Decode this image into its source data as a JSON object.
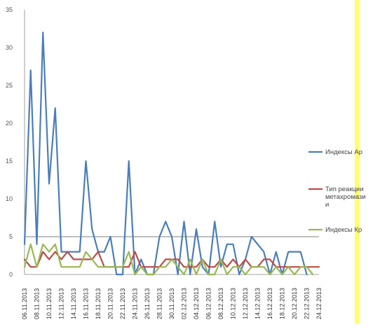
{
  "chart_data": {
    "type": "line",
    "ylim": [
      0,
      35
    ],
    "yticks": [
      0,
      5,
      10,
      15,
      20,
      25,
      30,
      35
    ],
    "x_tick_labels": [
      "06.11.2013",
      "08.11.2013",
      "10.11.2013",
      "12.11.2013",
      "14.11.2013",
      "16.11.2013",
      "18.11.2013",
      "20.11.2013",
      "22.11.2013",
      "24.11.2013",
      "26.11.2013",
      "28.11.2013",
      "30.11.2013",
      "02.12.2013",
      "04.12.2013",
      "06.12.2013",
      "08.12.2013",
      "10.12.2013",
      "12.12.2013",
      "14.12.2013",
      "16.12.2013",
      "18.12.2013",
      "20.12.2013",
      "22.12.2013",
      "24.12.2013"
    ],
    "x": [
      "06.11.2013",
      "07.11.2013",
      "08.11.2013",
      "09.11.2013",
      "10.11.2013",
      "11.11.2013",
      "12.11.2013",
      "13.11.2013",
      "14.11.2013",
      "15.11.2013",
      "16.11.2013",
      "17.11.2013",
      "18.11.2013",
      "19.11.2013",
      "20.11.2013",
      "21.11.2013",
      "22.11.2013",
      "23.11.2013",
      "24.11.2013",
      "25.11.2013",
      "26.11.2013",
      "27.11.2013",
      "28.11.2013",
      "29.11.2013",
      "30.11.2013",
      "01.12.2013",
      "02.12.2013",
      "03.12.2013",
      "04.12.2013",
      "05.12.2013",
      "06.12.2013",
      "07.12.2013",
      "08.12.2013",
      "09.12.2013",
      "10.12.2013",
      "11.12.2013",
      "12.12.2013",
      "13.12.2013",
      "14.12.2013",
      "15.12.2013",
      "16.12.2013",
      "17.12.2013",
      "18.12.2013",
      "19.12.2013",
      "20.12.2013",
      "21.12.2013",
      "22.12.2013",
      "23.12.2013",
      "24.12.2013"
    ],
    "series": [
      {
        "name": "Индексы Ар",
        "color": "#4A7EBB",
        "values": [
          4,
          27,
          4,
          32,
          12,
          22,
          3,
          3,
          3,
          3,
          15,
          6,
          3,
          3,
          5,
          0,
          0,
          15,
          0,
          2,
          0,
          0,
          5,
          7,
          5,
          0,
          7,
          0,
          6,
          1,
          0,
          7,
          1,
          4,
          4,
          0,
          2,
          5,
          4,
          3,
          0,
          3,
          0,
          3,
          3,
          3,
          0,
          null,
          null
        ]
      },
      {
        "name": "Тип реакции метахромазии",
        "color": "#BE4B48",
        "values": [
          2,
          1,
          1,
          3,
          2,
          3,
          2,
          3,
          2,
          2,
          2,
          2,
          3,
          1,
          1,
          1,
          1,
          1,
          3,
          1,
          1,
          1,
          1,
          2,
          2,
          2,
          1,
          1,
          1,
          2,
          1,
          1,
          2,
          1,
          2,
          1,
          2,
          1,
          1,
          2,
          2,
          1,
          1,
          1,
          1,
          1,
          1,
          1,
          1
        ]
      },
      {
        "name": "Индексы Кр",
        "color": "#98B954",
        "values": [
          1,
          4,
          1,
          4,
          3,
          4,
          1,
          1,
          1,
          1,
          3,
          2,
          1,
          1,
          1,
          1,
          1,
          3,
          0,
          1,
          0,
          0,
          1,
          1,
          2,
          1,
          0,
          2,
          0,
          2,
          0,
          0,
          2,
          0,
          1,
          1,
          0,
          1,
          1,
          1,
          0,
          1,
          0,
          1,
          0,
          1,
          1,
          0,
          null
        ]
      }
    ],
    "reference_line": 5,
    "legend_position": "right",
    "grid": false,
    "title": "",
    "xlabel": "",
    "ylabel": ""
  },
  "colors": {
    "axis": "#888888",
    "reference_line": "#555555",
    "highlight_band": "#FFFF66"
  }
}
